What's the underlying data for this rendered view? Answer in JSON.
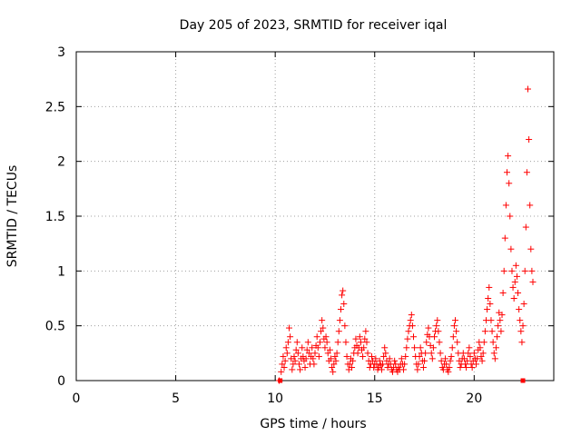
{
  "chart_data": {
    "type": "scatter",
    "title": "Day 205 of 2023, SRMTID for receiver iqal",
    "xlabel": "GPS time / hours",
    "ylabel": "SRMTID / TECUs",
    "xlim": [
      0,
      24
    ],
    "ylim": [
      0,
      3
    ],
    "xticks": [
      0,
      5,
      10,
      15,
      20
    ],
    "yticks": [
      0,
      0.5,
      1,
      1.5,
      2,
      2.5,
      3
    ],
    "xtick_labels": [
      "0",
      "5",
      "10",
      "15",
      "20"
    ],
    "ytick_labels": [
      "0",
      "0.5",
      "1",
      "1.5",
      "2",
      "2.5",
      "3"
    ],
    "grid": true,
    "marker": "+",
    "color": "#ff0000",
    "series": [
      {
        "name": "SRMTID",
        "points": [
          [
            10.2,
            0.0
          ],
          [
            10.3,
            0.08
          ],
          [
            10.35,
            0.15
          ],
          [
            10.4,
            0.22
          ],
          [
            10.45,
            0.12
          ],
          [
            10.5,
            0.18
          ],
          [
            10.55,
            0.3
          ],
          [
            10.6,
            0.25
          ],
          [
            10.65,
            0.35
          ],
          [
            10.7,
            0.48
          ],
          [
            10.75,
            0.4
          ],
          [
            10.8,
            0.2
          ],
          [
            10.85,
            0.1
          ],
          [
            10.9,
            0.15
          ],
          [
            10.95,
            0.22
          ],
          [
            11.0,
            0.18
          ],
          [
            11.05,
            0.28
          ],
          [
            11.1,
            0.35
          ],
          [
            11.15,
            0.25
          ],
          [
            11.2,
            0.15
          ],
          [
            11.25,
            0.1
          ],
          [
            11.3,
            0.2
          ],
          [
            11.35,
            0.3
          ],
          [
            11.4,
            0.22
          ],
          [
            11.45,
            0.18
          ],
          [
            11.5,
            0.12
          ],
          [
            11.55,
            0.2
          ],
          [
            11.6,
            0.28
          ],
          [
            11.65,
            0.35
          ],
          [
            11.7,
            0.25
          ],
          [
            11.75,
            0.15
          ],
          [
            11.8,
            0.22
          ],
          [
            11.85,
            0.3
          ],
          [
            11.9,
            0.2
          ],
          [
            11.95,
            0.15
          ],
          [
            12.0,
            0.25
          ],
          [
            12.05,
            0.32
          ],
          [
            12.1,
            0.4
          ],
          [
            12.15,
            0.3
          ],
          [
            12.2,
            0.22
          ],
          [
            12.25,
            0.35
          ],
          [
            12.3,
            0.45
          ],
          [
            12.35,
            0.55
          ],
          [
            12.4,
            0.48
          ],
          [
            12.45,
            0.38
          ],
          [
            12.5,
            0.3
          ],
          [
            12.55,
            0.4
          ],
          [
            12.6,
            0.35
          ],
          [
            12.65,
            0.25
          ],
          [
            12.7,
            0.18
          ],
          [
            12.75,
            0.28
          ],
          [
            12.8,
            0.2
          ],
          [
            12.85,
            0.12
          ],
          [
            12.9,
            0.08
          ],
          [
            12.95,
            0.15
          ],
          [
            13.0,
            0.22
          ],
          [
            13.05,
            0.18
          ],
          [
            13.1,
            0.25
          ],
          [
            13.15,
            0.35
          ],
          [
            13.2,
            0.45
          ],
          [
            13.25,
            0.55
          ],
          [
            13.3,
            0.65
          ],
          [
            13.35,
            0.78
          ],
          [
            13.4,
            0.82
          ],
          [
            13.45,
            0.7
          ],
          [
            13.5,
            0.5
          ],
          [
            13.55,
            0.35
          ],
          [
            13.6,
            0.22
          ],
          [
            13.65,
            0.15
          ],
          [
            13.7,
            0.1
          ],
          [
            13.75,
            0.15
          ],
          [
            13.8,
            0.2
          ],
          [
            13.85,
            0.12
          ],
          [
            13.9,
            0.18
          ],
          [
            13.95,
            0.25
          ],
          [
            14.0,
            0.3
          ],
          [
            14.05,
            0.38
          ],
          [
            14.1,
            0.32
          ],
          [
            14.15,
            0.25
          ],
          [
            14.2,
            0.3
          ],
          [
            14.25,
            0.4
          ],
          [
            14.3,
            0.35
          ],
          [
            14.35,
            0.28
          ],
          [
            14.4,
            0.22
          ],
          [
            14.45,
            0.3
          ],
          [
            14.5,
            0.38
          ],
          [
            14.55,
            0.45
          ],
          [
            14.6,
            0.35
          ],
          [
            14.65,
            0.25
          ],
          [
            14.7,
            0.18
          ],
          [
            14.75,
            0.12
          ],
          [
            14.8,
            0.15
          ],
          [
            14.85,
            0.22
          ],
          [
            14.9,
            0.18
          ],
          [
            14.95,
            0.12
          ],
          [
            15.0,
            0.15
          ],
          [
            15.05,
            0.2
          ],
          [
            15.1,
            0.15
          ],
          [
            15.15,
            0.1
          ],
          [
            15.2,
            0.12
          ],
          [
            15.25,
            0.18
          ],
          [
            15.3,
            0.14
          ],
          [
            15.35,
            0.1
          ],
          [
            15.4,
            0.15
          ],
          [
            15.45,
            0.22
          ],
          [
            15.5,
            0.3
          ],
          [
            15.55,
            0.25
          ],
          [
            15.6,
            0.18
          ],
          [
            15.65,
            0.12
          ],
          [
            15.7,
            0.15
          ],
          [
            15.75,
            0.2
          ],
          [
            15.8,
            0.15
          ],
          [
            15.85,
            0.1
          ],
          [
            15.9,
            0.08
          ],
          [
            15.95,
            0.12
          ],
          [
            16.0,
            0.18
          ],
          [
            16.05,
            0.15
          ],
          [
            16.1,
            0.1
          ],
          [
            16.15,
            0.08
          ],
          [
            16.2,
            0.12
          ],
          [
            16.25,
            0.1
          ],
          [
            16.3,
            0.15
          ],
          [
            16.35,
            0.2
          ],
          [
            16.4,
            0.15
          ],
          [
            16.45,
            0.1
          ],
          [
            16.5,
            0.15
          ],
          [
            16.55,
            0.22
          ],
          [
            16.6,
            0.3
          ],
          [
            16.65,
            0.38
          ],
          [
            16.7,
            0.45
          ],
          [
            16.75,
            0.5
          ],
          [
            16.8,
            0.55
          ],
          [
            16.85,
            0.6
          ],
          [
            16.9,
            0.5
          ],
          [
            16.95,
            0.4
          ],
          [
            17.0,
            0.3
          ],
          [
            17.05,
            0.22
          ],
          [
            17.1,
            0.15
          ],
          [
            17.15,
            0.1
          ],
          [
            17.2,
            0.15
          ],
          [
            17.25,
            0.22
          ],
          [
            17.3,
            0.3
          ],
          [
            17.35,
            0.25
          ],
          [
            17.4,
            0.18
          ],
          [
            17.45,
            0.12
          ],
          [
            17.5,
            0.18
          ],
          [
            17.55,
            0.25
          ],
          [
            17.6,
            0.35
          ],
          [
            17.65,
            0.42
          ],
          [
            17.7,
            0.48
          ],
          [
            17.75,
            0.4
          ],
          [
            17.8,
            0.32
          ],
          [
            17.85,
            0.25
          ],
          [
            17.9,
            0.2
          ],
          [
            17.95,
            0.3
          ],
          [
            18.0,
            0.4
          ],
          [
            18.05,
            0.45
          ],
          [
            18.1,
            0.5
          ],
          [
            18.15,
            0.55
          ],
          [
            18.2,
            0.45
          ],
          [
            18.25,
            0.35
          ],
          [
            18.3,
            0.25
          ],
          [
            18.35,
            0.18
          ],
          [
            18.4,
            0.12
          ],
          [
            18.45,
            0.1
          ],
          [
            18.5,
            0.15
          ],
          [
            18.55,
            0.2
          ],
          [
            18.6,
            0.15
          ],
          [
            18.65,
            0.1
          ],
          [
            18.7,
            0.08
          ],
          [
            18.75,
            0.12
          ],
          [
            18.8,
            0.18
          ],
          [
            18.85,
            0.22
          ],
          [
            18.9,
            0.3
          ],
          [
            18.95,
            0.4
          ],
          [
            19.0,
            0.5
          ],
          [
            19.05,
            0.55
          ],
          [
            19.1,
            0.45
          ],
          [
            19.15,
            0.35
          ],
          [
            19.2,
            0.25
          ],
          [
            19.25,
            0.18
          ],
          [
            19.3,
            0.12
          ],
          [
            19.35,
            0.15
          ],
          [
            19.4,
            0.2
          ],
          [
            19.45,
            0.25
          ],
          [
            19.5,
            0.2
          ],
          [
            19.55,
            0.15
          ],
          [
            19.6,
            0.12
          ],
          [
            19.65,
            0.18
          ],
          [
            19.7,
            0.25
          ],
          [
            19.75,
            0.3
          ],
          [
            19.8,
            0.22
          ],
          [
            19.85,
            0.15
          ],
          [
            19.9,
            0.12
          ],
          [
            19.95,
            0.18
          ],
          [
            20.0,
            0.25
          ],
          [
            20.05,
            0.2
          ],
          [
            20.1,
            0.15
          ],
          [
            20.15,
            0.2
          ],
          [
            20.2,
            0.28
          ],
          [
            20.25,
            0.35
          ],
          [
            20.3,
            0.3
          ],
          [
            20.35,
            0.22
          ],
          [
            20.4,
            0.18
          ],
          [
            20.45,
            0.25
          ],
          [
            20.5,
            0.35
          ],
          [
            20.55,
            0.45
          ],
          [
            20.6,
            0.55
          ],
          [
            20.65,
            0.65
          ],
          [
            20.7,
            0.75
          ],
          [
            20.75,
            0.85
          ],
          [
            20.8,
            0.7
          ],
          [
            20.85,
            0.55
          ],
          [
            20.9,
            0.45
          ],
          [
            20.95,
            0.35
          ],
          [
            21.0,
            0.25
          ],
          [
            21.05,
            0.2
          ],
          [
            21.1,
            0.3
          ],
          [
            21.15,
            0.4
          ],
          [
            21.2,
            0.5
          ],
          [
            21.25,
            0.62
          ],
          [
            21.3,
            0.55
          ],
          [
            21.35,
            0.45
          ],
          [
            21.4,
            0.6
          ],
          [
            21.45,
            0.8
          ],
          [
            21.5,
            1.0
          ],
          [
            21.55,
            1.3
          ],
          [
            21.6,
            1.6
          ],
          [
            21.65,
            1.9
          ],
          [
            21.7,
            2.05
          ],
          [
            21.75,
            1.8
          ],
          [
            21.8,
            1.5
          ],
          [
            21.85,
            1.2
          ],
          [
            21.9,
            1.0
          ],
          [
            21.95,
            0.85
          ],
          [
            22.0,
            0.75
          ],
          [
            22.05,
            0.9
          ],
          [
            22.1,
            1.05
          ],
          [
            22.15,
            0.95
          ],
          [
            22.2,
            0.8
          ],
          [
            22.25,
            0.65
          ],
          [
            22.3,
            0.55
          ],
          [
            22.35,
            0.45
          ],
          [
            22.4,
            0.35
          ],
          [
            22.45,
            0.5
          ],
          [
            22.5,
            0.7
          ],
          [
            22.55,
            1.0
          ],
          [
            22.6,
            1.4
          ],
          [
            22.65,
            1.9
          ],
          [
            22.7,
            2.66
          ],
          [
            22.75,
            2.2
          ],
          [
            22.8,
            1.6
          ],
          [
            22.85,
            1.2
          ],
          [
            22.9,
            1.0
          ],
          [
            22.95,
            0.9
          ]
        ],
        "markers_at_zero": [
          10.25,
          22.45
        ]
      }
    ]
  }
}
